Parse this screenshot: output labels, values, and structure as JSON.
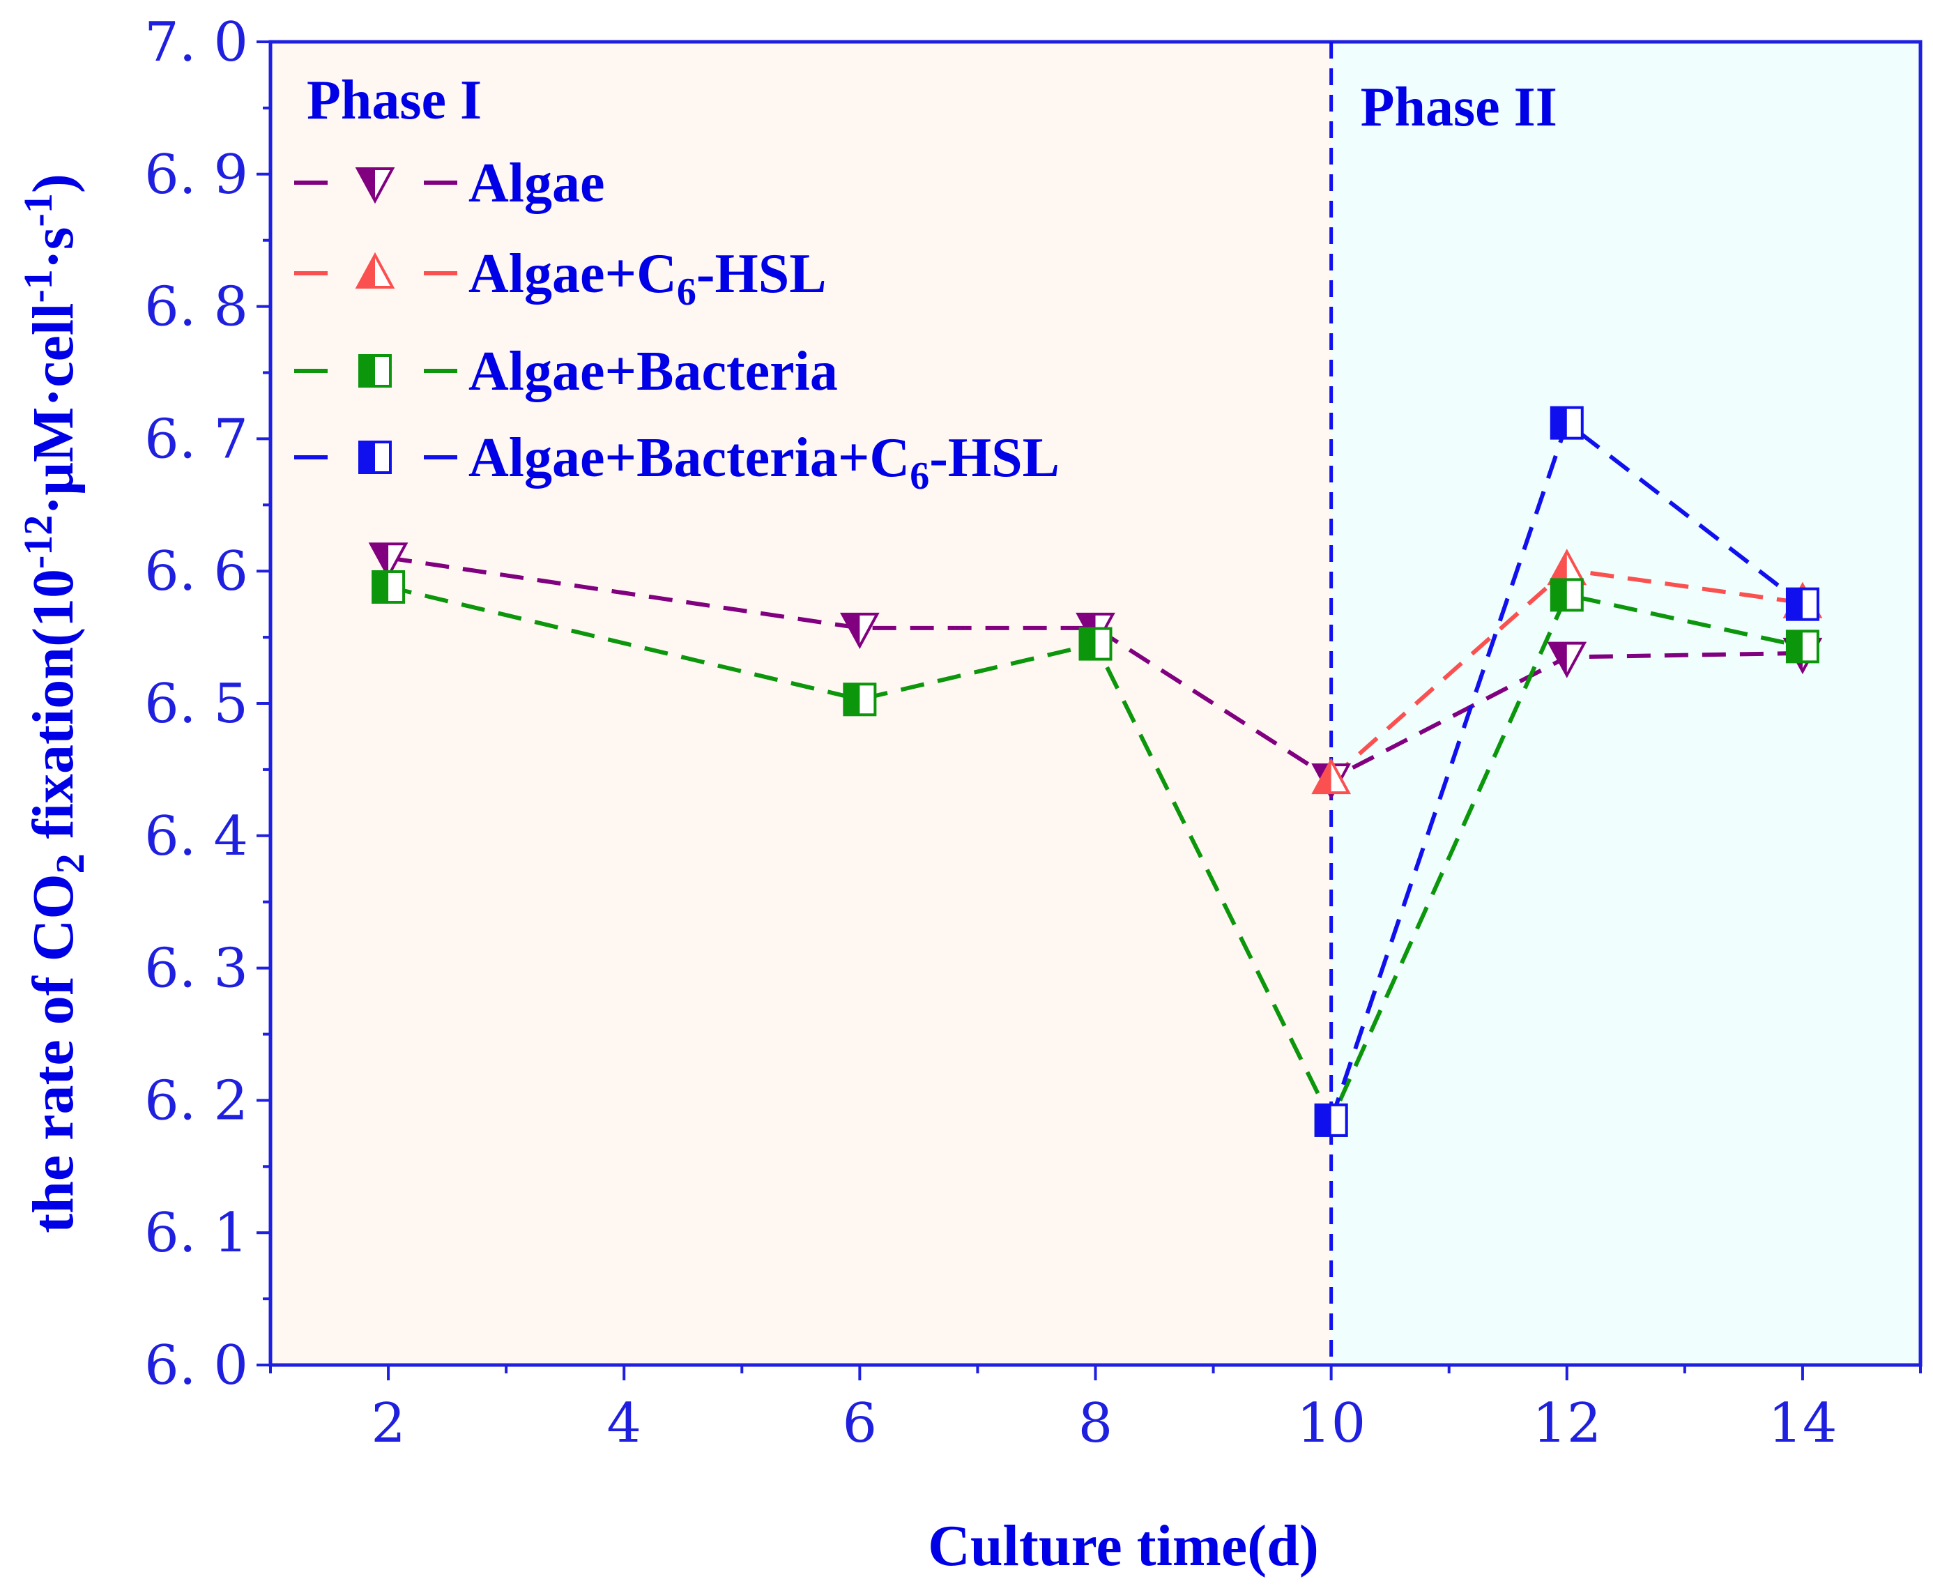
{
  "chart_data": {
    "type": "line",
    "xlabel": "Culture time(d)",
    "ylabel": {
      "pre": "the rate of CO",
      "co2_sub": "2",
      "mid": " fixation(10",
      "exp1": "-12",
      "mid2": "·μM·cell",
      "exp2": "-1",
      "mid3": "·s",
      "exp3": "-1",
      "post": ")"
    },
    "xlim": [
      1,
      15
    ],
    "ylim": [
      6.0,
      7.0
    ],
    "x_ticks": [
      2,
      4,
      6,
      8,
      10,
      12,
      14
    ],
    "y_ticks": [
      "6.0",
      "6.1",
      "6.2",
      "6.3",
      "6.4",
      "6.5",
      "6.6",
      "6.7",
      "6.8",
      "6.9",
      "7.0"
    ],
    "phases": [
      {
        "label": "Phase I",
        "from": 1,
        "to": 10,
        "color": "#fff8f2"
      },
      {
        "label": "Phase II",
        "from": 10,
        "to": 15,
        "color": "#f0fefe"
      }
    ],
    "divider_x": 10,
    "series": [
      {
        "name": "Algae",
        "legend": {
          "main": "Algae",
          "sub": "",
          "rest": ""
        },
        "color": "#800080",
        "marker": "triangle-down",
        "x": [
          2,
          6,
          8,
          10,
          12,
          14
        ],
        "values": [
          6.61,
          6.557,
          6.557,
          6.443,
          6.535,
          6.538
        ]
      },
      {
        "name": "Algae+C6-HSL",
        "legend": {
          "main": "Algae+C",
          "sub": "6",
          "rest": "-HSL"
        },
        "color": "#fa5050",
        "marker": "triangle-up",
        "x": [
          10,
          12,
          14
        ],
        "values": [
          6.443,
          6.601,
          6.576
        ]
      },
      {
        "name": "Algae+Bacteria",
        "legend": {
          "main": "Algae+Bacteria",
          "sub": "",
          "rest": ""
        },
        "color": "#0c960c",
        "marker": "square",
        "x": [
          2,
          6,
          8,
          10,
          12,
          14
        ],
        "values": [
          6.588,
          6.503,
          6.545,
          6.185,
          6.582,
          6.543
        ]
      },
      {
        "name": "Algae+Bacteria+C6-HSL",
        "legend": {
          "main": "Algae+Bacteria+C",
          "sub": "6",
          "rest": "-HSL"
        },
        "color": "#1010ee",
        "marker": "square",
        "x": [
          10,
          12,
          14
        ],
        "values": [
          6.185,
          6.712,
          6.575
        ]
      }
    ]
  }
}
